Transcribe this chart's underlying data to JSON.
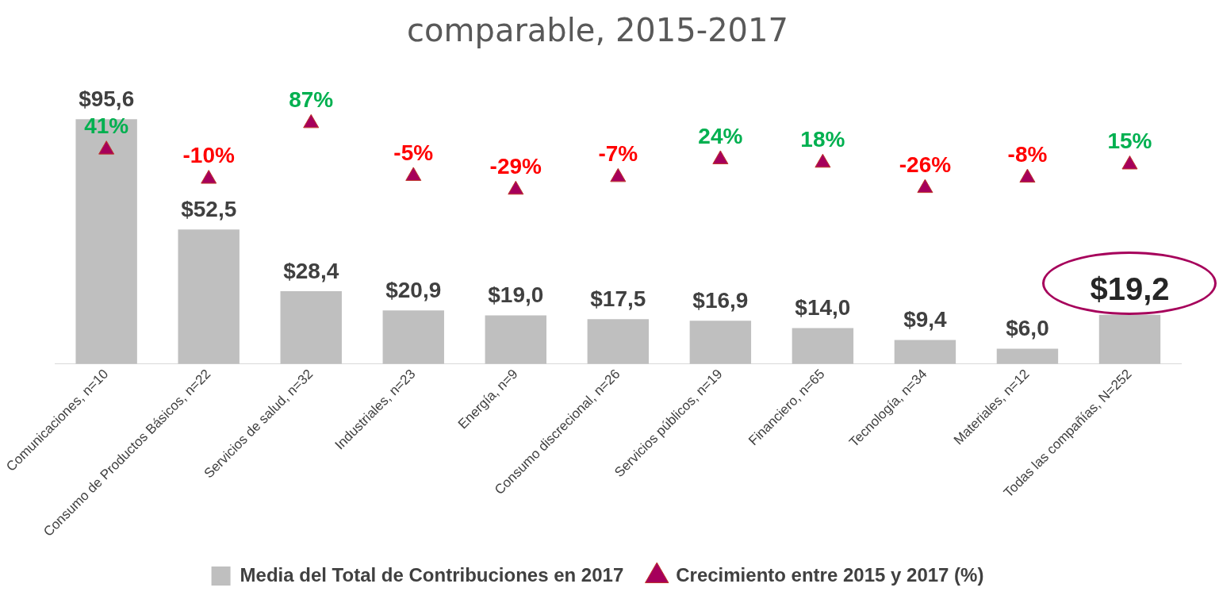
{
  "chart_data": {
    "type": "bar",
    "title": "comparable, 2015-2017",
    "categories": [
      "Comunicaciones, n=10",
      "Consumo de Productos Básicos, n=22",
      "Servicios de salud, n=32",
      "Industriales, n=23",
      "Energía, n=9",
      "Consumo discrecional, n=26",
      "Servicios públicos, n=19",
      "Financiero, n=65",
      "Tecnología, n=34",
      "Materiales, n=12",
      "Todas las compañías, N=252"
    ],
    "series": [
      {
        "name": "Media del Total de Contribuciones en 2017",
        "color": "#bfbfbf",
        "values": [
          95.6,
          52.5,
          28.4,
          20.9,
          19.0,
          17.5,
          16.9,
          14.0,
          9.4,
          6.0,
          19.2
        ],
        "value_labels": [
          "$95,6",
          "$52,5",
          "$28,4",
          "$20,9",
          "$19,0",
          "$17,5",
          "$16,9",
          "$14,0",
          "$9,4",
          "$6,0",
          "$19,2"
        ]
      },
      {
        "name": "Crecimiento entre 2015 y 2017 (%)",
        "type": "scatter",
        "axis": "y2",
        "color": "#a6005b",
        "marker": "triangle",
        "values": [
          41,
          -10,
          87,
          -5,
          -29,
          -7,
          24,
          18,
          -26,
          -8,
          15
        ],
        "value_labels": [
          "41%",
          "-10%",
          "87%",
          "-5%",
          "-29%",
          "-7%",
          "24%",
          "18%",
          "-26%",
          "-8%",
          "15%"
        ]
      }
    ],
    "tick_labels": "x",
    "grid": false,
    "legend": "bottom"
  }
}
